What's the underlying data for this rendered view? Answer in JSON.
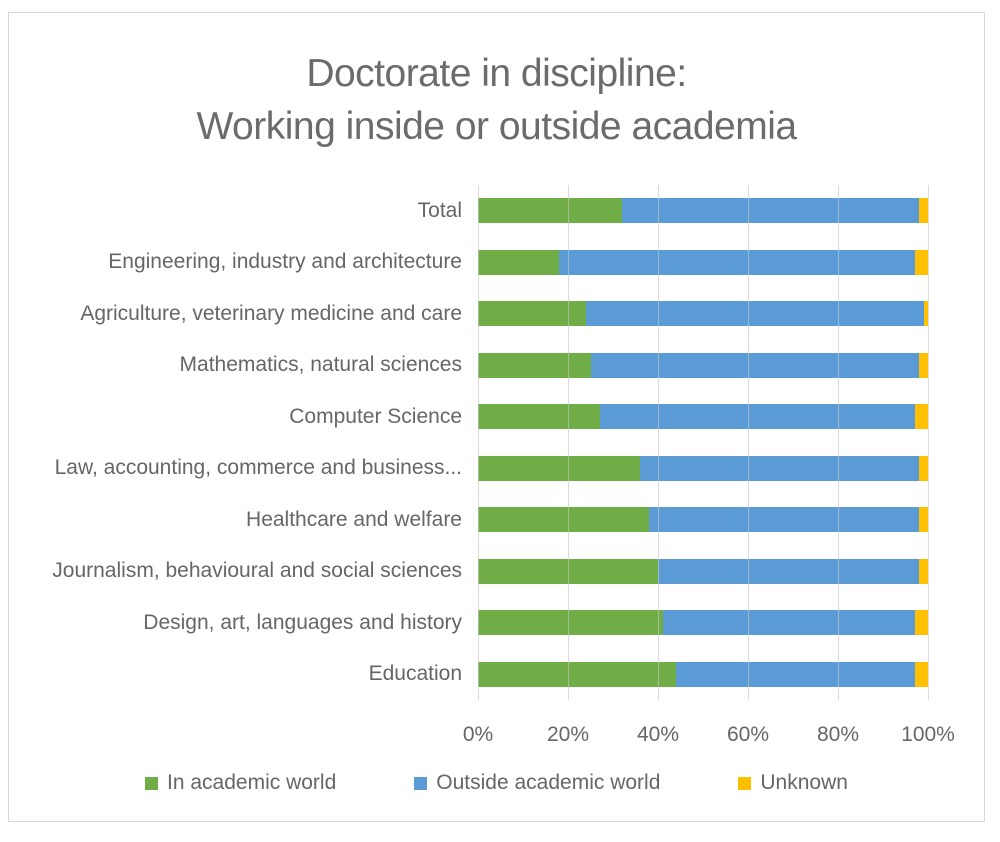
{
  "chart": {
    "title_line1": "Doctorate in discipline:",
    "title_line2": "Working inside or outside academia"
  },
  "chart_data": {
    "type": "bar",
    "orientation": "horizontal",
    "stacked": true,
    "title": "Doctorate in discipline: Working inside or outside academia",
    "categories": [
      "Total",
      "Engineering, industry and architecture",
      "Agriculture, veterinary medicine and care",
      "Mathematics, natural sciences",
      "Computer Science",
      "Law, accounting, commerce and business...",
      "Healthcare and welfare",
      "Journalism, behavioural and social sciences",
      "Design, art, languages and history",
      "Education"
    ],
    "series": [
      {
        "name": "In academic world",
        "color": "#70AD47",
        "values": [
          32,
          18,
          24,
          25,
          27,
          36,
          38,
          40,
          41,
          44
        ]
      },
      {
        "name": "Outside academic world",
        "color": "#5B9BD5",
        "values": [
          66,
          79,
          75,
          73,
          70,
          62,
          60,
          58,
          56,
          53
        ]
      },
      {
        "name": "Unknown",
        "color": "#FFC000",
        "values": [
          2,
          3,
          1,
          2,
          3,
          2,
          2,
          2,
          3,
          3
        ]
      }
    ],
    "x_ticks": [
      "0%",
      "20%",
      "40%",
      "60%",
      "80%",
      "100%"
    ],
    "xlim": [
      0,
      100
    ],
    "grid": "vertical",
    "legend_position": "bottom"
  },
  "colors": {
    "text": "#666666",
    "gridline": "#d9d9d9",
    "frame_border": "#d8d8d8",
    "background": "#ffffff"
  }
}
